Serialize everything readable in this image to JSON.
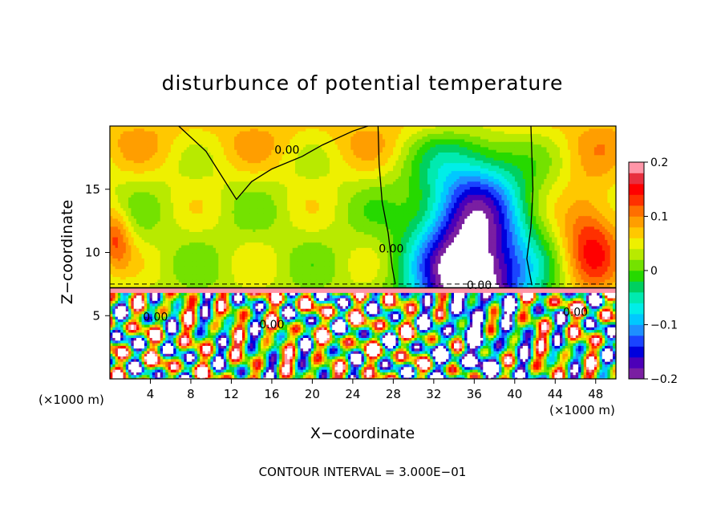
{
  "chart_data": {
    "type": "heatmap",
    "title": "disturbunce of potential temperature",
    "xlabel": "X−coordinate",
    "ylabel": "Z−coordinate",
    "x_unit_left": "(×1000 m)",
    "x_unit_right": "(×1000 m)",
    "xlim": [
      0,
      50
    ],
    "ylim": [
      0,
      20
    ],
    "x_ticks": [
      4,
      8,
      12,
      16,
      20,
      24,
      28,
      32,
      36,
      40,
      44,
      48
    ],
    "y_ticks": [
      5,
      10,
      15
    ],
    "colorbar": {
      "range": [
        -0.2,
        0.2
      ],
      "ticks": [
        0.2,
        0.1,
        0,
        -0.1,
        -0.2
      ],
      "tick_labels": [
        "0.2",
        "0.1",
        "0",
        "−0.1",
        "−0.2"
      ],
      "colors": [
        "#7a1fa2",
        "#4c00b8",
        "#0000dd",
        "#1a44ff",
        "#1e8fff",
        "#00c8ff",
        "#00eee8",
        "#00eab0",
        "#00d060",
        "#26d900",
        "#74e200",
        "#b8ea00",
        "#eef000",
        "#ffc800",
        "#ff9e00",
        "#ff6f00",
        "#ff3000",
        "#ff0000",
        "#e8303f",
        "#ff96a8"
      ]
    },
    "contour_labels": [
      {
        "x": 17.5,
        "z": 17.8,
        "text": "0.00"
      },
      {
        "x": 27.8,
        "z": 10.0,
        "text": "0.00"
      },
      {
        "x": 36.5,
        "z": 7.1,
        "text": "0.00"
      },
      {
        "x": 46.0,
        "z": 5.0,
        "text": "0.00"
      },
      {
        "x": 4.5,
        "z": 4.6,
        "text": "0.00"
      },
      {
        "x": 16.0,
        "z": 4.0,
        "text": "0.00"
      }
    ],
    "footer": "CONTOUR INTERVAL = 3.000E−01"
  }
}
